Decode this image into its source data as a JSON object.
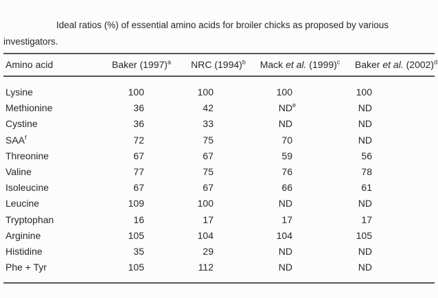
{
  "colors": {
    "background": "#fcfcfc",
    "text": "#262626",
    "rule": "#555555"
  },
  "caption": {
    "line1": "Ideal ratios (%) of essential amino acids for broiler chicks as proposed by various",
    "line2": "investigators."
  },
  "table": {
    "header": {
      "amino_acid": {
        "text": "Amino acid",
        "sup": ""
      },
      "cols": [
        {
          "pre": "Baker (1997)",
          "italic": "",
          "post": "",
          "sup": "a"
        },
        {
          "pre": "NRC (1994)",
          "italic": "",
          "post": "",
          "sup": "b"
        },
        {
          "pre": "Mack ",
          "italic": "et al.",
          "post": " (1999)",
          "sup": "c"
        },
        {
          "pre": "Baker ",
          "italic": "et al.",
          "post": " (2002)",
          "sup": "d"
        }
      ]
    },
    "rows": [
      {
        "name": "Lysine",
        "name_sup": "",
        "values": [
          {
            "v": "100",
            "sup": ""
          },
          {
            "v": "100",
            "sup": ""
          },
          {
            "v": "100",
            "sup": ""
          },
          {
            "v": "100",
            "sup": ""
          }
        ]
      },
      {
        "name": "Methionine",
        "name_sup": "",
        "values": [
          {
            "v": "36",
            "sup": ""
          },
          {
            "v": "42",
            "sup": ""
          },
          {
            "v": "ND",
            "sup": "e"
          },
          {
            "v": "ND",
            "sup": ""
          }
        ]
      },
      {
        "name": "Cystine",
        "name_sup": "",
        "values": [
          {
            "v": "36",
            "sup": ""
          },
          {
            "v": "33",
            "sup": ""
          },
          {
            "v": "ND",
            "sup": ""
          },
          {
            "v": "ND",
            "sup": ""
          }
        ]
      },
      {
        "name": "SAA",
        "name_sup": "f",
        "values": [
          {
            "v": "72",
            "sup": ""
          },
          {
            "v": "75",
            "sup": ""
          },
          {
            "v": "70",
            "sup": ""
          },
          {
            "v": "ND",
            "sup": ""
          }
        ]
      },
      {
        "name": "Threonine",
        "name_sup": "",
        "values": [
          {
            "v": "67",
            "sup": ""
          },
          {
            "v": "67",
            "sup": ""
          },
          {
            "v": "59",
            "sup": ""
          },
          {
            "v": "56",
            "sup": ""
          }
        ]
      },
      {
        "name": "Valine",
        "name_sup": "",
        "values": [
          {
            "v": "77",
            "sup": ""
          },
          {
            "v": "75",
            "sup": ""
          },
          {
            "v": "76",
            "sup": ""
          },
          {
            "v": "78",
            "sup": ""
          }
        ]
      },
      {
        "name": "Isoleucine",
        "name_sup": "",
        "values": [
          {
            "v": "67",
            "sup": ""
          },
          {
            "v": "67",
            "sup": ""
          },
          {
            "v": "66",
            "sup": ""
          },
          {
            "v": "61",
            "sup": ""
          }
        ]
      },
      {
        "name": "Leucine",
        "name_sup": "",
        "values": [
          {
            "v": "109",
            "sup": ""
          },
          {
            "v": "100",
            "sup": ""
          },
          {
            "v": "ND",
            "sup": ""
          },
          {
            "v": "ND",
            "sup": ""
          }
        ]
      },
      {
        "name": "Tryptophan",
        "name_sup": "",
        "values": [
          {
            "v": "16",
            "sup": ""
          },
          {
            "v": "17",
            "sup": ""
          },
          {
            "v": "17",
            "sup": ""
          },
          {
            "v": "17",
            "sup": ""
          }
        ]
      },
      {
        "name": "Arginine",
        "name_sup": "",
        "values": [
          {
            "v": "105",
            "sup": ""
          },
          {
            "v": "104",
            "sup": ""
          },
          {
            "v": "104",
            "sup": ""
          },
          {
            "v": "105",
            "sup": ""
          }
        ]
      },
      {
        "name": "Histidine",
        "name_sup": "",
        "values": [
          {
            "v": "35",
            "sup": ""
          },
          {
            "v": "29",
            "sup": ""
          },
          {
            "v": "ND",
            "sup": ""
          },
          {
            "v": "ND",
            "sup": ""
          }
        ]
      },
      {
        "name": "Phe + Tyr",
        "name_sup": "",
        "values": [
          {
            "v": "105",
            "sup": ""
          },
          {
            "v": "112",
            "sup": ""
          },
          {
            "v": "ND",
            "sup": ""
          },
          {
            "v": "ND",
            "sup": ""
          }
        ]
      }
    ]
  }
}
